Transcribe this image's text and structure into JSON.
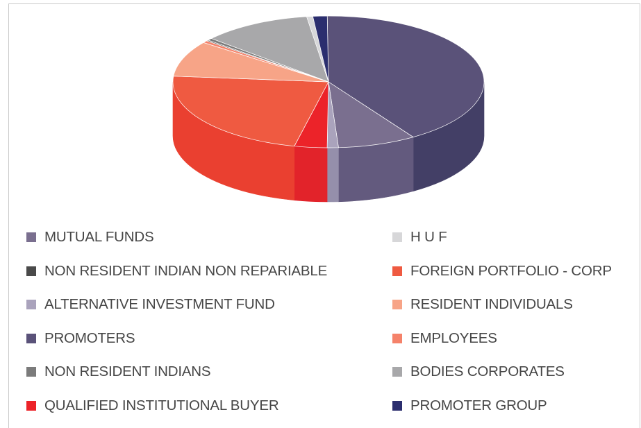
{
  "chart_data": {
    "type": "pie",
    "title": "",
    "legend_position": "bottom",
    "slices": [
      {
        "name": "PROMOTERS",
        "value": 38.7,
        "color": "#5a5279",
        "side_color": "#433f66"
      },
      {
        "name": "MUTUAL FUNDS",
        "value": 7.7,
        "color": "#7a6f8f",
        "side_color": "#635a7e"
      },
      {
        "name": "ALTERNATIVE INVESTMENT FUND",
        "value": 1.1,
        "color": "#aaa3bc",
        "side_color": "#958fab"
      },
      {
        "name": "QUALIFIED INSTITUTIONAL BUYER",
        "value": 3.2,
        "color": "#ec2329",
        "side_color": "#e2232a"
      },
      {
        "name": "FOREIGN PORTFOLIO - CORP",
        "value": 21.6,
        "color": "#ef5a41",
        "side_color": "#ea4030"
      },
      {
        "name": "RESIDENT INDIVIDUALS",
        "value": 8.3,
        "color": "#f7a487",
        "side_color": "#ee8d74"
      },
      {
        "name": "EMPLOYEES",
        "value": 0.5,
        "color": "#f5826a",
        "side_color": "#e66f58"
      },
      {
        "name": "NON RESIDENT INDIAN NON REPARIABLE",
        "value": 0.2,
        "color": "#4a4a4a",
        "side_color": "#3a3a3a"
      },
      {
        "name": "NON RESIDENT INDIANS",
        "value": 0.5,
        "color": "#7b7b7b",
        "side_color": "#6a6a6a"
      },
      {
        "name": "BODIES CORPORATES",
        "value": 10.7,
        "color": "#a8a8aa",
        "side_color": "#929294"
      },
      {
        "name": "H U F",
        "value": 0.6,
        "color": "#d7d7d9",
        "side_color": "#c2c2c4"
      },
      {
        "name": "PROMOTER GROUP",
        "value": 1.4,
        "color": "#2b2e6e",
        "side_color": "#23265a"
      }
    ]
  },
  "legend": {
    "items": [
      {
        "label": "MUTUAL FUNDS",
        "color": "#7a6f8f"
      },
      {
        "label": "H U F",
        "color": "#d7d7d9"
      },
      {
        "label": "NON RESIDENT INDIAN NON REPARIABLE",
        "color": "#4a4a4a"
      },
      {
        "label": "FOREIGN PORTFOLIO - CORP",
        "color": "#ef5a41"
      },
      {
        "label": "ALTERNATIVE INVESTMENT FUND",
        "color": "#aaa3bc"
      },
      {
        "label": "RESIDENT INDIVIDUALS",
        "color": "#f7a487"
      },
      {
        "label": "PROMOTERS",
        "color": "#5a5279"
      },
      {
        "label": "EMPLOYEES",
        "color": "#f5826a"
      },
      {
        "label": "NON RESIDENT INDIANS",
        "color": "#7b7b7b"
      },
      {
        "label": "BODIES CORPORATES",
        "color": "#a8a8aa"
      },
      {
        "label": "QUALIFIED INSTITUTIONAL BUYER",
        "color": "#ec2329"
      },
      {
        "label": "PROMOTER GROUP",
        "color": "#2b2e6e"
      }
    ]
  }
}
